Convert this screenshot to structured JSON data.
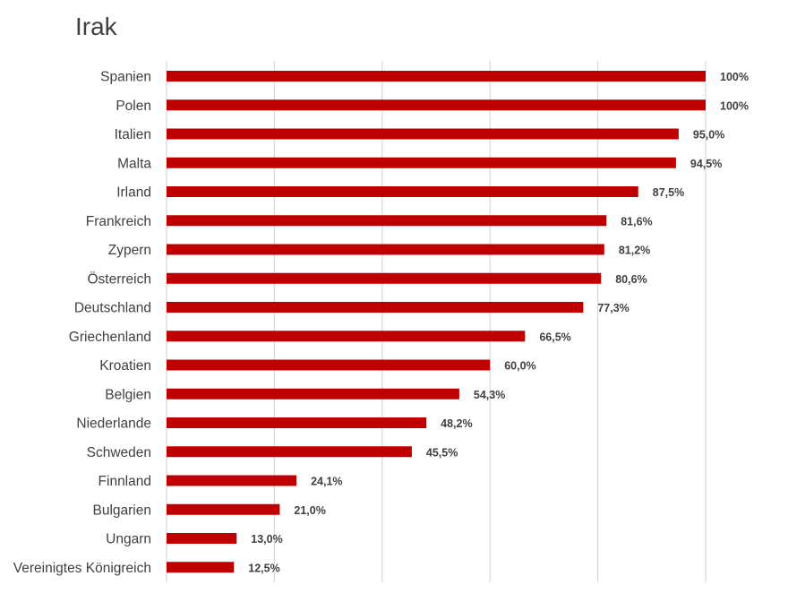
{
  "chart_data": {
    "type": "bar",
    "orientation": "horizontal",
    "title": "Irak",
    "xlabel": "",
    "ylabel": "",
    "xlim": [
      0,
      100
    ],
    "grid": true,
    "legend": "none",
    "bar_color": "#C00000",
    "categories": [
      "Spanien",
      "Polen",
      "Italien",
      "Malta",
      "Irland",
      "Frankreich",
      "Zypern",
      "Österreich",
      "Deutschland",
      "Griechenland",
      "Kroatien",
      "Belgien",
      "Niederlande",
      "Schweden",
      "Finnland",
      "Bulgarien",
      "Ungarn",
      "Vereinigtes Königreich"
    ],
    "values": [
      100,
      100,
      95.0,
      94.5,
      87.5,
      81.6,
      81.2,
      80.6,
      77.3,
      66.5,
      60.0,
      54.3,
      48.2,
      45.5,
      24.1,
      21.0,
      13.0,
      12.5
    ],
    "value_labels": [
      "100%",
      "100%",
      "95,0%",
      "94,5%",
      "87,5%",
      "81,6%",
      "81,2%",
      "80,6%",
      "77,3%",
      "66,5%",
      "60,0%",
      "54,3%",
      "48,2%",
      "45,5%",
      "24,1%",
      "21,0%",
      "13,0%",
      "12,5%"
    ]
  }
}
